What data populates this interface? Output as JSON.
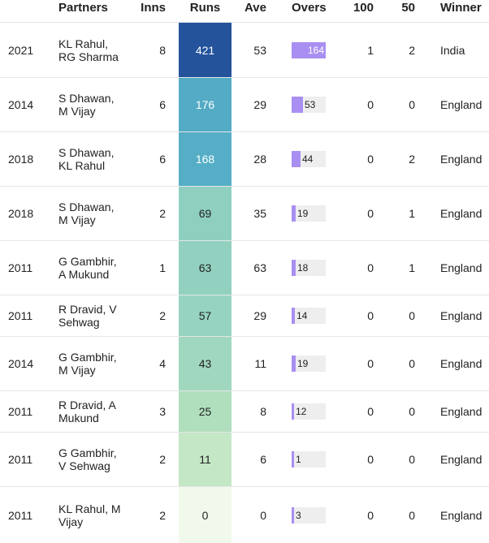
{
  "chart_data": {
    "type": "table",
    "columns": [
      "",
      "Partners",
      "Inns",
      "Runs",
      "Ave",
      "Overs",
      "100",
      "50",
      "Winner"
    ],
    "rows": [
      {
        "year": "2021",
        "partners": "KL Rahul, RG Sharma",
        "inns": "8",
        "runs": 421,
        "ave": "53",
        "overs": 164,
        "hundreds": "1",
        "fifties": "2",
        "winner": "India"
      },
      {
        "year": "2014",
        "partners": "S Dhawan, M Vijay",
        "inns": "6",
        "runs": 176,
        "ave": "29",
        "overs": 53,
        "hundreds": "0",
        "fifties": "0",
        "winner": "England"
      },
      {
        "year": "2018",
        "partners": "S Dhawan, KL Rahul",
        "inns": "6",
        "runs": 168,
        "ave": "28",
        "overs": 44,
        "hundreds": "0",
        "fifties": "2",
        "winner": "England"
      },
      {
        "year": "2018",
        "partners": "S Dhawan, M Vijay",
        "inns": "2",
        "runs": 69,
        "ave": "35",
        "overs": 19,
        "hundreds": "0",
        "fifties": "1",
        "winner": "England"
      },
      {
        "year": "2011",
        "partners": "G Gambhir, A Mukund",
        "inns": "1",
        "runs": 63,
        "ave": "63",
        "overs": 18,
        "hundreds": "0",
        "fifties": "1",
        "winner": "England"
      },
      {
        "year": "2011",
        "partners": "R Dravid, V Sehwag",
        "inns": "2",
        "runs": 57,
        "ave": "29",
        "overs": 14,
        "hundreds": "0",
        "fifties": "0",
        "winner": "England"
      },
      {
        "year": "2014",
        "partners": "G Gambhir, M Vijay",
        "inns": "4",
        "runs": 43,
        "ave": "11",
        "overs": 19,
        "hundreds": "0",
        "fifties": "0",
        "winner": "England"
      },
      {
        "year": "2011",
        "partners": "R Dravid, A Mukund",
        "inns": "3",
        "runs": 25,
        "ave": "8",
        "overs": 12,
        "hundreds": "0",
        "fifties": "0",
        "winner": "England"
      },
      {
        "year": "2011",
        "partners": "G Gambhir, V Sehwag",
        "inns": "2",
        "runs": 11,
        "ave": "6",
        "overs": 1,
        "hundreds": "0",
        "fifties": "0",
        "winner": "England"
      },
      {
        "year": "2011",
        "partners": "KL Rahul, M Vijay",
        "inns": "2",
        "runs": 0,
        "ave": "0",
        "overs": 3,
        "hundreds": "0",
        "fifties": "0",
        "winner": "England"
      }
    ],
    "runs_color_scale": [
      "#f1f9ec",
      "#b9e3bd",
      "#8fd0c0",
      "#5ab4c8",
      "#3a8dbd",
      "#24539c"
    ],
    "overs_bar_color": "#a98ff2",
    "overs_track_color": "#eeeeee",
    "overs_max": 164,
    "runs_max": 421
  }
}
